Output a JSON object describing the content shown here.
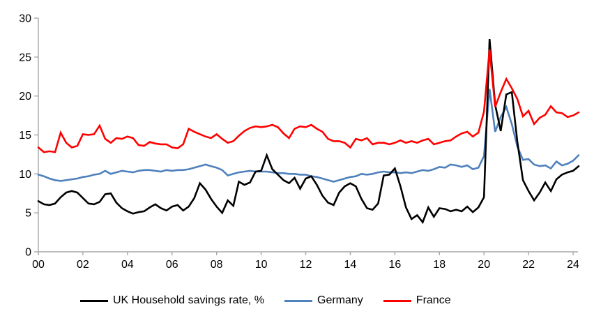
{
  "chart_data": {
    "type": "line",
    "title": "",
    "x_start": 2000,
    "x_step": 0.25,
    "grid": "off",
    "legend_position": "bottom",
    "axis_color": "#a6a6a6",
    "text_color": "#000000",
    "x_axis": {
      "tick_labels": [
        "00",
        "02",
        "04",
        "06",
        "08",
        "10",
        "12",
        "14",
        "16",
        "18",
        "20",
        "22",
        "24"
      ],
      "tick_years": [
        2000,
        2002,
        2004,
        2006,
        2008,
        2010,
        2012,
        2014,
        2016,
        2018,
        2020,
        2022,
        2024
      ]
    },
    "y_axis": {
      "min": 0,
      "max": 30,
      "tick_step": 5,
      "tick_labels": [
        "0",
        "5",
        "10",
        "15",
        "20",
        "25",
        "30"
      ]
    },
    "series": [
      {
        "name": "UK Household savings rate, %",
        "color": "#000000",
        "values": [
          6.5,
          6.1,
          6.0,
          6.2,
          7.0,
          7.6,
          7.8,
          7.6,
          6.9,
          6.2,
          6.1,
          6.4,
          7.4,
          7.5,
          6.3,
          5.6,
          5.2,
          4.9,
          5.1,
          5.2,
          5.7,
          6.1,
          5.6,
          5.3,
          5.8,
          6.0,
          5.3,
          5.8,
          6.9,
          8.8,
          8.0,
          6.8,
          5.8,
          5.0,
          6.6,
          5.9,
          9.0,
          8.6,
          8.9,
          10.3,
          10.4,
          12.4,
          10.6,
          9.9,
          9.2,
          8.8,
          9.5,
          8.1,
          9.4,
          9.7,
          8.6,
          7.2,
          6.3,
          6.0,
          7.6,
          8.4,
          8.8,
          8.4,
          6.8,
          5.6,
          5.4,
          6.2,
          9.8,
          9.9,
          10.7,
          8.4,
          5.7,
          4.2,
          4.7,
          3.8,
          5.7,
          4.5,
          5.6,
          5.5,
          5.2,
          5.4,
          5.2,
          5.8,
          5.1,
          5.7,
          7.0,
          27.3,
          18.9,
          15.5,
          20.2,
          20.5,
          14.1,
          9.2,
          7.8,
          6.6,
          7.6,
          8.9,
          7.8,
          9.3,
          9.9,
          10.2,
          10.4,
          11.0
        ]
      },
      {
        "name": "Germany",
        "color": "#4f81bd",
        "values": [
          9.9,
          9.7,
          9.4,
          9.2,
          9.1,
          9.2,
          9.3,
          9.4,
          9.6,
          9.7,
          9.9,
          10.0,
          10.4,
          10.0,
          10.2,
          10.4,
          10.3,
          10.2,
          10.4,
          10.5,
          10.5,
          10.4,
          10.3,
          10.5,
          10.4,
          10.5,
          10.5,
          10.6,
          10.8,
          11.0,
          11.2,
          11.0,
          10.8,
          10.5,
          9.8,
          10.0,
          10.2,
          10.3,
          10.4,
          10.3,
          10.3,
          10.3,
          10.2,
          10.1,
          10.1,
          10.0,
          10.0,
          9.9,
          9.9,
          9.7,
          9.6,
          9.4,
          9.2,
          9.0,
          9.2,
          9.4,
          9.6,
          9.7,
          10.0,
          9.9,
          10.0,
          10.2,
          10.3,
          10.2,
          10.2,
          10.1,
          10.2,
          10.1,
          10.3,
          10.5,
          10.4,
          10.6,
          10.9,
          10.8,
          11.2,
          11.1,
          10.9,
          11.1,
          10.6,
          10.8,
          12.3,
          20.9,
          15.4,
          17.3,
          18.6,
          16.4,
          13.5,
          11.8,
          11.9,
          11.2,
          11.0,
          11.1,
          10.7,
          11.6,
          11.1,
          11.3,
          11.7,
          12.4
        ]
      },
      {
        "name": "France",
        "color": "#ff0000",
        "values": [
          13.4,
          12.8,
          12.9,
          12.8,
          15.3,
          14.0,
          13.4,
          13.6,
          15.1,
          15.0,
          15.1,
          16.2,
          14.5,
          14.0,
          14.6,
          14.5,
          14.8,
          14.6,
          13.7,
          13.6,
          14.1,
          13.9,
          13.8,
          13.8,
          13.4,
          13.3,
          13.8,
          15.8,
          15.4,
          15.1,
          14.8,
          14.6,
          15.1,
          14.5,
          14.0,
          14.2,
          14.9,
          15.5,
          15.9,
          16.1,
          16.0,
          16.1,
          16.3,
          16.0,
          15.2,
          14.6,
          15.8,
          16.1,
          16.0,
          16.3,
          15.8,
          15.4,
          14.5,
          14.2,
          14.2,
          14.0,
          13.4,
          14.5,
          14.3,
          14.6,
          13.8,
          14.0,
          14.0,
          13.8,
          14.0,
          14.3,
          14.0,
          14.2,
          14.0,
          14.3,
          14.5,
          13.8,
          14.0,
          14.2,
          14.3,
          14.8,
          15.2,
          15.4,
          14.8,
          15.3,
          18.0,
          26.0,
          18.6,
          20.5,
          22.2,
          21.0,
          19.6,
          17.4,
          18.1,
          16.4,
          17.2,
          17.6,
          18.7,
          17.9,
          17.8,
          17.3,
          17.5,
          17.9
        ]
      }
    ]
  }
}
